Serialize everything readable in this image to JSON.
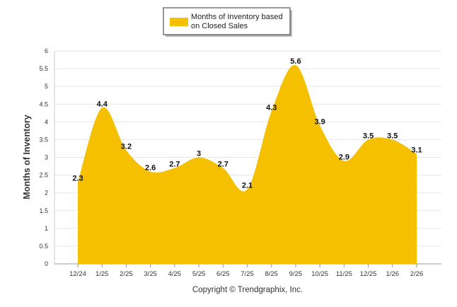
{
  "chart_data": {
    "type": "area",
    "categories": [
      "12/24",
      "1/25",
      "2/25",
      "3/25",
      "4/25",
      "5/25",
      "6/25",
      "7/25",
      "8/25",
      "9/25",
      "10/25",
      "11/25",
      "12/25",
      "1/26",
      "2/26"
    ],
    "series": [
      {
        "name": "Months of Inventory based on Closed Sales",
        "values": [
          2.3,
          4.4,
          3.2,
          2.6,
          2.7,
          3,
          2.7,
          2.1,
          4.3,
          5.6,
          3.9,
          2.9,
          3.5,
          3.5,
          3.1
        ],
        "labels": [
          "2.3",
          "4.4",
          "3.2",
          "2.6",
          "2.7",
          "3",
          "2.7",
          "2.1",
          "4.3",
          "5.6",
          "3.9",
          "2.9",
          "3.5",
          "3.5",
          "3.1"
        ],
        "color": "#F5C000"
      }
    ],
    "title": "",
    "xlabel": "",
    "ylabel": "Months of Inventory",
    "ylim": [
      0,
      6
    ],
    "yticks": [
      "0",
      "0.5",
      "1",
      "1.5",
      "2",
      "2.5",
      "3",
      "3.5",
      "4",
      "4.5",
      "5",
      "5.5",
      "6"
    ],
    "grid": true,
    "legend": {
      "position": "top-center",
      "label_line1": "Months of Inventory based",
      "label_line2": "on Closed Sales"
    },
    "footer": "Copyright © Trendgraphix, Inc."
  }
}
